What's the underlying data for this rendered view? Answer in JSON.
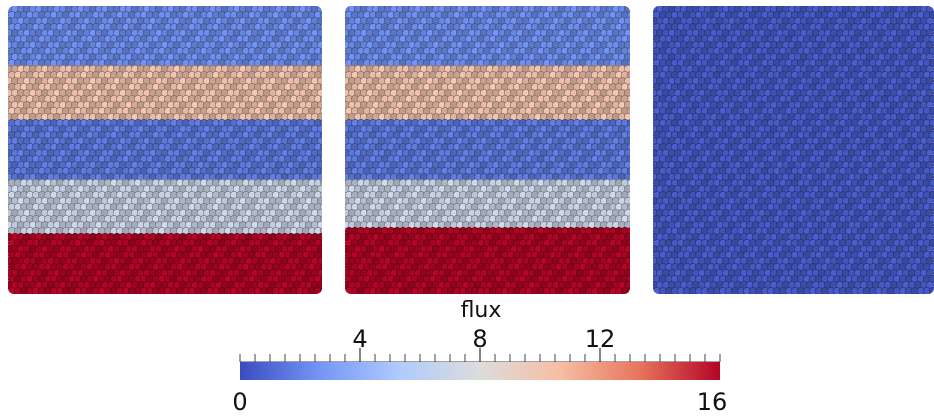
{
  "colors": {
    "background": "#ffffff",
    "sphere_stroke": "#1a1a2e",
    "colormap": [
      "#3b4cc0",
      "#7396f5",
      "#b0cbfc",
      "#dddcdc",
      "#f6bea4",
      "#e7745b",
      "#b40426"
    ]
  },
  "panels": [
    {
      "name": "panel-left",
      "bands": [
        {
          "flux": 2.5,
          "rows": 10
        },
        {
          "flux": 10.2,
          "rows": 9
        },
        {
          "flux": 1.8,
          "rows": 10
        },
        {
          "flux": 7.0,
          "rows": 9
        },
        {
          "flux": 16.0,
          "rows": 10
        }
      ]
    },
    {
      "name": "panel-middle",
      "bands": [
        {
          "flux": 2.5,
          "rows": 10
        },
        {
          "flux": 10.2,
          "rows": 9
        },
        {
          "flux": 1.8,
          "rows": 10
        },
        {
          "flux": 7.0,
          "rows": 8
        },
        {
          "flux": 16.0,
          "rows": 11
        }
      ]
    },
    {
      "name": "panel-right",
      "bands": [
        {
          "flux": 0.6,
          "rows": 48
        }
      ]
    }
  ],
  "colorbar": {
    "title": "flux",
    "min": 0,
    "max": 16,
    "min_label": "0",
    "max_label": "16",
    "major_ticks": [
      {
        "value": 4,
        "label": "4"
      },
      {
        "value": 8,
        "label": "8"
      },
      {
        "value": 12,
        "label": "12"
      }
    ],
    "minor_tick_step": 0.5
  }
}
